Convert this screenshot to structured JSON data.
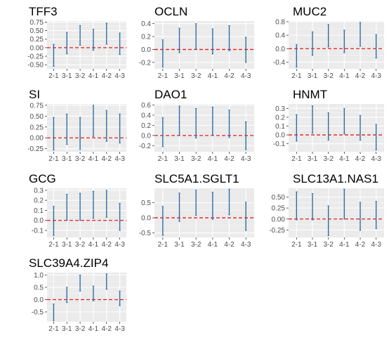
{
  "chart_data": [
    {
      "type": "errorbar",
      "title": "TFF3",
      "categories": [
        "2-1",
        "3-1",
        "3-2",
        "4-1",
        "4-2",
        "4-3"
      ],
      "lower": [
        -0.55,
        -0.18,
        0.07,
        -0.08,
        0.1,
        -0.2
      ],
      "upper": [
        0.1,
        0.45,
        0.65,
        0.54,
        0.72,
        0.43
      ],
      "ylim": [
        -0.62,
        0.78
      ],
      "yticks": [
        -0.5,
        -0.25,
        0,
        0.25,
        0.5,
        0.75
      ],
      "yticklabels": [
        "-0.50",
        "-0.25",
        "0.00",
        "0.25",
        "0.50",
        "0.75"
      ],
      "ref_line": 0
    },
    {
      "type": "errorbar",
      "title": "OCLN",
      "categories": [
        "2-1",
        "3-1",
        "3-2",
        "4-1",
        "4-2",
        "4-3"
      ],
      "lower": [
        -0.27,
        -0.05,
        0.0,
        -0.07,
        -0.02,
        -0.2
      ],
      "upper": [
        0.15,
        0.33,
        0.4,
        0.32,
        0.37,
        0.19
      ],
      "ylim": [
        -0.3,
        0.44
      ],
      "yticks": [
        -0.2,
        0,
        0.2,
        0.4
      ],
      "yticklabels": [
        "-0.2",
        "0.0",
        "0.2",
        "0.4"
      ],
      "ref_line": 0
    },
    {
      "type": "errorbar",
      "title": "MUC2",
      "categories": [
        "2-1",
        "3-1",
        "3-2",
        "4-1",
        "4-2",
        "4-3"
      ],
      "lower": [
        -0.55,
        -0.2,
        0.05,
        -0.12,
        0.07,
        -0.28
      ],
      "upper": [
        0.12,
        0.5,
        0.72,
        0.55,
        0.78,
        0.42
      ],
      "ylim": [
        -0.6,
        0.82
      ],
      "yticks": [
        -0.4,
        0,
        0.4,
        0.8
      ],
      "yticklabels": [
        "-0.4",
        "0.0",
        "0.4",
        "0.8"
      ],
      "ref_line": 0
    },
    {
      "type": "errorbar",
      "title": "SI",
      "categories": [
        "2-1",
        "3-1",
        "3-2",
        "4-1",
        "4-2",
        "4-3"
      ],
      "lower": [
        -0.28,
        -0.15,
        -0.27,
        0.03,
        -0.08,
        -0.12
      ],
      "upper": [
        0.47,
        0.55,
        0.47,
        0.75,
        0.63,
        0.55
      ],
      "ylim": [
        -0.32,
        0.78
      ],
      "yticks": [
        -0.25,
        0,
        0.25,
        0.5,
        0.75
      ],
      "yticklabels": [
        "-0.25",
        "0.00",
        "0.25",
        "0.50",
        "0.75"
      ],
      "ref_line": 0
    },
    {
      "type": "errorbar",
      "title": "DAO1",
      "categories": [
        "2-1",
        "3-1",
        "3-2",
        "4-1",
        "4-2",
        "4-3"
      ],
      "lower": [
        -0.22,
        0.0,
        -0.05,
        0.0,
        -0.04,
        -0.28
      ],
      "upper": [
        0.35,
        0.58,
        0.53,
        0.56,
        0.5,
        0.27
      ],
      "ylim": [
        -0.32,
        0.62
      ],
      "yticks": [
        -0.2,
        0,
        0.2,
        0.4,
        0.6
      ],
      "yticklabels": [
        "-0.2",
        "0.0",
        "0.2",
        "0.4",
        "0.6"
      ],
      "ref_line": 0
    },
    {
      "type": "errorbar",
      "title": "HNMT",
      "categories": [
        "2-1",
        "3-1",
        "3-2",
        "4-1",
        "4-2",
        "4-3"
      ],
      "lower": [
        -0.07,
        0.02,
        -0.06,
        0.01,
        -0.06,
        -0.17
      ],
      "upper": [
        0.23,
        0.33,
        0.25,
        0.3,
        0.22,
        0.12
      ],
      "ylim": [
        -0.19,
        0.35
      ],
      "yticks": [
        -0.1,
        0,
        0.1,
        0.2,
        0.3
      ],
      "yticklabels": [
        "-0.1",
        "0.0",
        "0.1",
        "0.2",
        "0.3"
      ],
      "ref_line": 0
    },
    {
      "type": "errorbar",
      "title": "GCG",
      "categories": [
        "2-1",
        "3-1",
        "3-2",
        "4-1",
        "4-2",
        "4-3"
      ],
      "lower": [
        -0.15,
        0.0,
        0.0,
        0.02,
        0.03,
        -0.1
      ],
      "upper": [
        0.14,
        0.26,
        0.27,
        0.29,
        0.3,
        0.17
      ],
      "ylim": [
        -0.17,
        0.32
      ],
      "yticks": [
        -0.1,
        0,
        0.1,
        0.2,
        0.3
      ],
      "yticklabels": [
        "-0.1",
        "0.0",
        "0.1",
        "0.2",
        "0.3"
      ],
      "ref_line": 0
    },
    {
      "type": "errorbar",
      "title": "SLC5A1.SGLT1",
      "categories": [
        "2-1",
        "3-1",
        "3-2",
        "4-1",
        "4-2",
        "4-3"
      ],
      "lower": [
        -0.58,
        -0.12,
        0.08,
        -0.05,
        0.1,
        -0.42
      ],
      "upper": [
        0.38,
        0.82,
        0.92,
        0.85,
        0.95,
        0.52
      ],
      "ylim": [
        -0.65,
        0.98
      ],
      "yticks": [
        -0.5,
        0,
        0.5
      ],
      "yticklabels": [
        "-0.5",
        "0.0",
        "0.5"
      ],
      "ref_line": 0
    },
    {
      "type": "errorbar",
      "title": "SLC13A1.NAS1",
      "categories": [
        "2-1",
        "3-1",
        "3-2",
        "4-1",
        "4-2",
        "4-3"
      ],
      "lower": [
        -0.02,
        -0.02,
        -0.38,
        0.0,
        -0.26,
        -0.22
      ],
      "upper": [
        0.62,
        0.58,
        0.3,
        0.68,
        0.38,
        0.4
      ],
      "ylim": [
        -0.42,
        0.7
      ],
      "yticks": [
        -0.25,
        0,
        0.25,
        0.5
      ],
      "yticklabels": [
        "-0.25",
        "0.00",
        "0.25",
        "0.50"
      ],
      "ref_line": 0
    },
    {
      "type": "errorbar",
      "title": "SLC39A4.ZIP4",
      "categories": [
        "2-1",
        "3-1",
        "3-2",
        "4-1",
        "4-2",
        "4-3"
      ],
      "lower": [
        -0.85,
        -0.12,
        0.35,
        -0.05,
        0.42,
        -0.25
      ],
      "upper": [
        -0.18,
        0.5,
        1.0,
        0.55,
        1.05,
        0.35
      ],
      "ylim": [
        -0.9,
        1.1
      ],
      "yticks": [
        -0.5,
        0,
        0.5,
        1.0
      ],
      "yticklabels": [
        "-0.5",
        "0.0",
        "0.5",
        "1.0"
      ],
      "ref_line": 0
    }
  ],
  "colors": {
    "panel_bg": "#ebebeb",
    "grid_major": "#ffffff",
    "grid_minor": "#f5f5f5",
    "bar": "#2f6ea6",
    "ref_line": "#e41a1c",
    "text": "#4d4d4d",
    "title": "#000000"
  }
}
